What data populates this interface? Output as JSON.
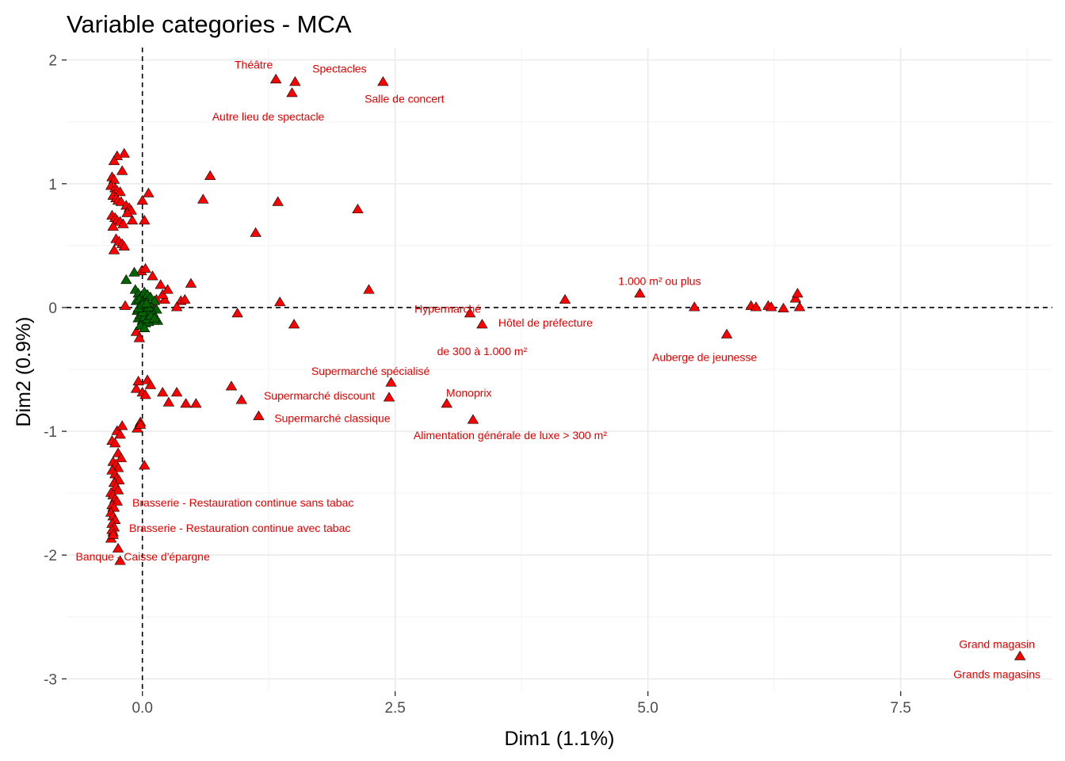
{
  "chart_data": {
    "type": "scatter",
    "title": "Variable categories - MCA",
    "xlabel": "Dim1 (1.1%)",
    "ylabel": "Dim2 (0.9%)",
    "xlim": [
      -0.75,
      9.0
    ],
    "ylim": [
      -3.1,
      2.1
    ],
    "x_ticks": [
      0.0,
      2.5,
      5.0,
      7.5
    ],
    "x_tick_labels": [
      "0.0",
      "2.5",
      "5.0",
      "7.5"
    ],
    "y_ticks": [
      -3,
      -2,
      -1,
      0,
      1,
      2
    ],
    "y_tick_labels": [
      "-3",
      "-2",
      "-1",
      "0",
      "1",
      "2"
    ],
    "grid": true,
    "reference_lines": {
      "x": 0,
      "y": 0
    },
    "colors": {
      "red": "#ff0000",
      "green": "#006400",
      "label": "#e60000"
    },
    "labeled_points": [
      {
        "text": "Théâtre",
        "x": 1.32,
        "y": 1.84
      },
      {
        "text": "Spectacles",
        "x": 1.51,
        "y": 1.82
      },
      {
        "text": "Autre lieu de spectacle",
        "x": 1.48,
        "y": 1.73
      },
      {
        "text": "Salle de concert",
        "x": 2.38,
        "y": 1.82
      },
      {
        "text": "1.000 m² ou plus",
        "x": 4.92,
        "y": 0.11
      },
      {
        "text": "Hypermarché",
        "x": 3.24,
        "y": -0.05
      },
      {
        "text": "Hôtel de préfecture",
        "x": 3.36,
        "y": -0.14
      },
      {
        "text": "de 300 à 1.000 m²",
        "x": 3.36,
        "y": -0.14
      },
      {
        "text": "Auberge de jeunesse",
        "x": 5.78,
        "y": -0.22
      },
      {
        "text": "Supermarché spécialisé",
        "x": 2.46,
        "y": -0.61
      },
      {
        "text": "Supermarché discount",
        "x": 2.44,
        "y": -0.73
      },
      {
        "text": "Monoprix",
        "x": 3.01,
        "y": -0.78
      },
      {
        "text": "Supermarché classique",
        "x": 1.15,
        "y": -0.88
      },
      {
        "text": "Alimentation générale de luxe > 300 m²",
        "x": 3.27,
        "y": -0.91
      },
      {
        "text": "Brasserie - Restauration continue sans tabac",
        "x": -0.29,
        "y": -1.62
      },
      {
        "text": "Brasserie - Restauration continue avec tabac",
        "x": -0.29,
        "y": -1.82
      },
      {
        "text": "Banque - Caisse d'épargne",
        "x": -0.31,
        "y": -1.87
      },
      {
        "text": "Grand magasin",
        "x": 8.68,
        "y": -2.82
      },
      {
        "text": "Grands magasins",
        "x": 8.68,
        "y": -2.82
      }
    ],
    "series": [
      {
        "color": "red",
        "x": [
          1.32,
          1.51,
          1.48,
          2.38,
          4.92,
          3.24,
          3.36,
          5.78,
          2.46,
          2.44,
          3.01,
          1.15,
          3.27,
          -0.29,
          -0.29,
          -0.31,
          8.68,
          4.18,
          5.46,
          6.02,
          6.07,
          6.19,
          6.22,
          6.34,
          6.46,
          6.48,
          6.5,
          1.36,
          1.5,
          0.94,
          2.24,
          0.38,
          0.42,
          0.34,
          0.48,
          0.22,
          0.2,
          0.25,
          0.14,
          0.18,
          0.1,
          -0.17,
          0.88,
          0.98,
          0.43,
          0.53,
          0.34,
          0.26,
          0.2,
          0.05,
          0.08,
          -0.06,
          -0.04,
          0.0,
          0.03,
          0.67,
          0.6,
          1.12,
          1.34,
          2.13,
          0.06,
          0.0,
          0.02,
          -0.1,
          -0.01,
          0.03,
          0.1,
          -0.18,
          -0.25,
          -0.28,
          -0.2,
          -0.3,
          -0.28,
          -0.31,
          -0.27,
          -0.25,
          -0.22,
          -0.29,
          -0.26,
          -0.24,
          -0.21,
          -0.16,
          -0.13,
          -0.11,
          -0.15,
          -0.3,
          -0.27,
          -0.25,
          -0.22,
          -0.19,
          -0.29,
          -0.26,
          -0.23,
          -0.2,
          -0.18,
          -0.28,
          -0.25,
          -0.22,
          -0.3,
          -0.27,
          -0.24,
          -0.21,
          -0.29,
          -0.26,
          -0.24,
          -0.3,
          -0.27,
          -0.25,
          -0.23,
          -0.28,
          -0.26,
          -0.24,
          -0.31,
          -0.29,
          -0.27,
          -0.25,
          -0.3,
          -0.28,
          -0.31,
          -0.29,
          -0.27,
          -0.3,
          -0.28,
          -0.3,
          -0.29,
          -0.24,
          -0.22,
          -0.2,
          -0.02,
          0.02,
          -0.05,
          -0.02,
          -0.06,
          -0.03
        ],
        "y": [
          1.84,
          1.82,
          1.73,
          1.82,
          0.11,
          -0.05,
          -0.14,
          -0.22,
          -0.61,
          -0.73,
          -0.78,
          -0.88,
          -0.91,
          -1.62,
          -1.82,
          -1.87,
          -2.82,
          0.06,
          0.0,
          0.01,
          0.0,
          0.01,
          0.0,
          -0.01,
          0.07,
          0.11,
          0.0,
          0.04,
          -0.14,
          -0.05,
          0.14,
          0.05,
          0.06,
          0.0,
          0.19,
          0.06,
          0.1,
          0.14,
          0.06,
          0.18,
          0.01,
          0.01,
          -0.64,
          -0.75,
          -0.78,
          -0.78,
          -0.69,
          -0.77,
          -0.69,
          -0.59,
          -0.63,
          -0.66,
          -0.6,
          -0.69,
          -0.71,
          1.06,
          0.87,
          0.6,
          0.85,
          0.79,
          0.92,
          0.86,
          0.7,
          0.7,
          0.29,
          0.31,
          0.25,
          1.24,
          1.22,
          1.18,
          1.1,
          1.05,
          1.03,
          0.98,
          0.96,
          0.94,
          0.93,
          0.9,
          0.88,
          0.86,
          0.85,
          0.82,
          0.8,
          0.78,
          0.76,
          0.74,
          0.72,
          0.7,
          0.69,
          0.67,
          0.65,
          0.55,
          0.53,
          0.51,
          0.49,
          0.46,
          -1.0,
          -1.03,
          -1.08,
          -1.1,
          -1.18,
          -1.22,
          -1.25,
          -1.27,
          -1.3,
          -1.32,
          -1.35,
          -1.38,
          -1.4,
          -1.42,
          -1.45,
          -1.48,
          -1.5,
          -1.52,
          -1.55,
          -1.57,
          -1.6,
          -1.62,
          -1.66,
          -1.69,
          -1.72,
          -1.75,
          -1.78,
          -1.8,
          -1.84,
          -1.95,
          -2.05,
          -0.96,
          -0.93,
          -1.28,
          -0.98,
          -0.95,
          -0.2,
          -0.25
        ]
      },
      {
        "color": "green",
        "x": [
          -0.07,
          -0.04,
          -0.01,
          0.02,
          0.05,
          0.08,
          0.12,
          -0.06,
          -0.03,
          0.0,
          0.03,
          0.06,
          0.09,
          0.14,
          0.15,
          -0.02,
          0.01,
          0.04,
          0.07,
          0.1,
          -0.05,
          -0.01,
          0.02,
          0.05,
          0.08,
          0.11,
          -0.04,
          0.0,
          0.03,
          0.06,
          -0.03,
          0.01,
          0.04,
          0.07,
          -0.02,
          0.02,
          0.05,
          0.09,
          0.0,
          0.03,
          0.06,
          -0.04,
          0.0,
          0.04,
          0.08,
          0.12,
          -0.02,
          0.02,
          -0.16,
          -0.08
        ],
        "y": [
          0.14,
          0.11,
          0.09,
          0.12,
          0.1,
          0.08,
          0.05,
          0.05,
          0.06,
          0.04,
          0.03,
          0.02,
          0.0,
          -0.02,
          -0.11,
          0.01,
          0.0,
          -0.01,
          -0.02,
          -0.04,
          -0.03,
          -0.05,
          -0.06,
          -0.07,
          -0.09,
          -0.11,
          -0.09,
          -0.11,
          -0.13,
          -0.12,
          0.0,
          -0.02,
          -0.03,
          -0.05,
          -0.06,
          -0.08,
          -0.1,
          -0.06,
          -0.04,
          0.01,
          0.0,
          -0.01,
          0.02,
          0.03,
          -0.07,
          -0.09,
          -0.15,
          -0.17,
          0.22,
          0.28
        ]
      }
    ]
  }
}
